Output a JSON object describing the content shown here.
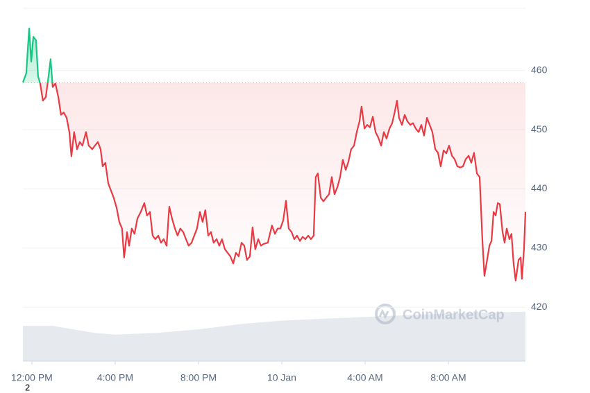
{
  "chart_data": {
    "type": "line",
    "xlim": [
      -0.43,
      23.7
    ],
    "xticks": [
      {
        "value": 0,
        "label": "12:00 PM"
      },
      {
        "value": 4,
        "label": "4:00 PM"
      },
      {
        "value": 8,
        "label": "8:00 PM"
      },
      {
        "value": 12,
        "label": "10 Jan"
      },
      {
        "value": 16,
        "label": "4:00 AM"
      },
      {
        "value": 20,
        "label": "8:00 AM"
      }
    ],
    "ylim": [
      410.9,
      470.5
    ],
    "yticks": [
      420,
      430,
      440,
      450,
      460
    ],
    "y2lim": [
      0,
      100
    ],
    "grid": true,
    "baseline": 457.9,
    "watermark": "CoinMarketCap",
    "footnote": "2",
    "series": [
      {
        "color": "#ea3943",
        "color_above": "#16c784",
        "x": [
          -0.43,
          -0.27,
          -0.13,
          -0.03,
          0.07,
          0.2,
          0.3,
          0.4,
          0.53,
          0.67,
          0.8,
          0.9,
          1,
          1.13,
          1.27,
          1.4,
          1.53,
          1.67,
          1.8,
          1.9,
          2.03,
          2.17,
          2.3,
          2.43,
          2.6,
          2.73,
          2.9,
          3.03,
          3.17,
          3.3,
          3.4,
          3.53,
          3.67,
          3.8,
          3.93,
          4.07,
          4.2,
          4.33,
          4.43,
          4.57,
          4.67,
          4.8,
          4.93,
          5.07,
          5.23,
          5.4,
          5.53,
          5.67,
          5.8,
          5.93,
          6.07,
          6.2,
          6.33,
          6.47,
          6.6,
          6.73,
          6.87,
          7,
          7.13,
          7.27,
          7.4,
          7.53,
          7.67,
          7.8,
          7.93,
          8.07,
          8.2,
          8.33,
          8.47,
          8.6,
          8.73,
          8.87,
          9,
          9.13,
          9.27,
          9.4,
          9.53,
          9.67,
          9.8,
          9.93,
          10.07,
          10.2,
          10.33,
          10.47,
          10.6,
          10.73,
          10.87,
          11,
          11.13,
          11.33,
          11.53,
          11.67,
          11.8,
          11.93,
          12.07,
          12.2,
          12.33,
          12.47,
          12.6,
          12.73,
          12.87,
          13,
          13.13,
          13.27,
          13.4,
          13.53,
          13.63,
          13.73,
          13.87,
          14,
          14.13,
          14.27,
          14.4,
          14.53,
          14.67,
          14.8,
          14.93,
          15.07,
          15.2,
          15.33,
          15.47,
          15.6,
          15.73,
          15.83,
          15.97,
          16.1,
          16.23,
          16.37,
          16.5,
          16.63,
          16.77,
          16.9,
          17.03,
          17.17,
          17.3,
          17.43,
          17.53,
          17.63,
          17.77,
          17.9,
          18.03,
          18.17,
          18.3,
          18.43,
          18.57,
          18.7,
          18.83,
          18.97,
          19.1,
          19.23,
          19.37,
          19.5,
          19.63,
          19.77,
          19.9,
          20.03,
          20.17,
          20.3,
          20.43,
          20.57,
          20.7,
          20.83,
          20.97,
          21.1,
          21.23,
          21.37,
          21.5,
          21.63,
          21.73,
          21.83,
          21.97,
          22.07,
          22.17,
          22.27,
          22.37,
          22.47,
          22.6,
          22.7,
          22.8,
          22.93,
          23.03,
          23.13,
          23.23,
          23.37,
          23.47,
          23.53,
          23.63,
          23.7
        ],
        "values": [
          458,
          459.5,
          467.1,
          461.5,
          465.7,
          465.1,
          459,
          457.8,
          454.9,
          455.5,
          459,
          461.9,
          457.2,
          457.8,
          455.5,
          452.5,
          452.9,
          452,
          449.6,
          445.5,
          449.6,
          446.7,
          447.9,
          447.3,
          449.6,
          447.3,
          446.7,
          447.3,
          447.9,
          446.7,
          443.8,
          444.4,
          440.9,
          439.7,
          438.5,
          436.8,
          434.4,
          433.3,
          428.4,
          432.7,
          430.4,
          433.3,
          432.4,
          435,
          436.1,
          437.6,
          435.5,
          436.1,
          432.1,
          431.5,
          432.1,
          430.9,
          431.5,
          430.4,
          437,
          435,
          433.3,
          432.1,
          433.3,
          432.7,
          431.5,
          430.4,
          430.9,
          432.1,
          433.3,
          436.1,
          434.4,
          436.4,
          432.1,
          432.7,
          430.9,
          431.5,
          430.4,
          431.5,
          429.8,
          429.2,
          428.6,
          427.4,
          429.2,
          428.6,
          430.9,
          430.4,
          428,
          428.6,
          433.5,
          429.8,
          431.5,
          430.4,
          430.7,
          430.9,
          433.8,
          432.4,
          433.3,
          433.3,
          434.7,
          438,
          433.3,
          432.7,
          431.5,
          432.1,
          431.2,
          431.9,
          431.5,
          432.1,
          431.5,
          432.1,
          442,
          442.6,
          438.5,
          437.9,
          438.5,
          439.1,
          442,
          439.1,
          440.3,
          442,
          444.9,
          443.2,
          444.6,
          446.7,
          447.3,
          449.6,
          451.4,
          453.9,
          450.2,
          450.8,
          450.4,
          452.2,
          449.6,
          448.7,
          447.3,
          449.6,
          448.5,
          450.2,
          451.1,
          453.1,
          454.9,
          452,
          450.8,
          452.5,
          451.4,
          450.8,
          451.1,
          450.2,
          449.6,
          450.8,
          449,
          452,
          450.8,
          449.6,
          446.7,
          446.1,
          443.8,
          446.5,
          446,
          447.3,
          445.6,
          445,
          443.8,
          443.6,
          443.8,
          445,
          445.6,
          444.4,
          446.1,
          442.6,
          442,
          431.5,
          425.3,
          427.4,
          430.4,
          431.2,
          436.1,
          435.5,
          437.6,
          437.4,
          432.7,
          430.9,
          433.3,
          431.5,
          432.4,
          427.4,
          424.5,
          428,
          428.4,
          424.8,
          429.8,
          436.1
        ]
      },
      {
        "color": "#e6e9ee",
        "axis": "y2",
        "x": [
          -0.43,
          1,
          2,
          3,
          4,
          6,
          8,
          10,
          12,
          14,
          16,
          18,
          20,
          23.7
        ],
        "values": [
          10,
          10,
          9,
          8,
          7.5,
          8,
          9,
          10.5,
          11.5,
          12,
          12.5,
          13,
          13.5,
          14
        ]
      }
    ]
  }
}
